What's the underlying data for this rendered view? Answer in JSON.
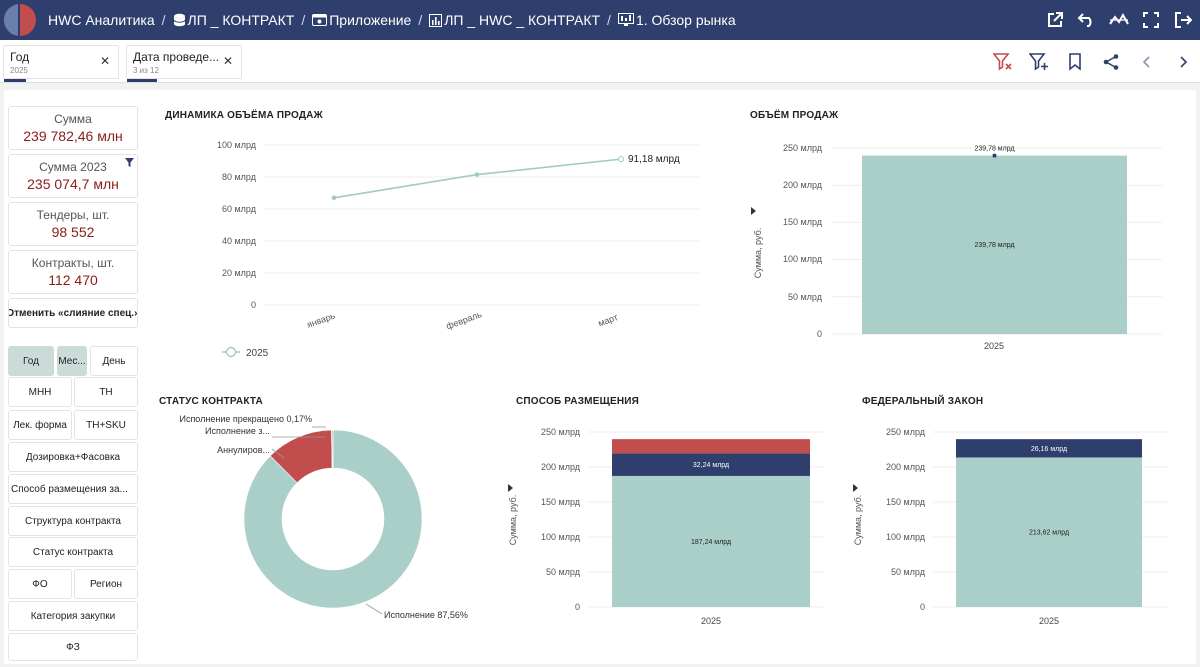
{
  "colors": {
    "topbar": "#2f3f6d",
    "teal": "#a9cfc8",
    "red": "#c14d4d",
    "navy": "#2f3f6d",
    "kpi": "#8a1c1c"
  },
  "breadcrumb": [
    {
      "label": "HWC Аналитика",
      "icon": ""
    },
    {
      "label": "ЛП _ КОНТРАКТ",
      "icon": "database-icon"
    },
    {
      "label": "Приложение",
      "icon": "app-icon"
    },
    {
      "label": "ЛП _ HWC _ КОНТРАКТ",
      "icon": "chart-icon"
    },
    {
      "label": "1. Обзор рынка",
      "icon": "monitor-icon"
    }
  ],
  "filters": [
    {
      "title": "Год",
      "sub": "2025"
    },
    {
      "title": "Дата проведе...",
      "sub": "3 из 12"
    }
  ],
  "kpis": [
    {
      "label": "Сумма",
      "value": "239 782,46 млн"
    },
    {
      "label": "Сумма 2023",
      "value": "235 074,7 млн"
    },
    {
      "label": "Тендеры, шт.",
      "value": "98 552"
    },
    {
      "label": "Контракты, шт.",
      "value": "112 470"
    }
  ],
  "sidebar_buttons": {
    "cancel_merge": "Отменить «слияние спец.»",
    "year": "Год",
    "month": "Мес...",
    "day": "День",
    "mnn": "МНН",
    "tn": "ТН",
    "lek_form": "Лек. форма",
    "tn_sku": "ТН+SKU",
    "dosage": "Дозировка+Фасовка",
    "placement": "Способ размещения за...",
    "structure": "Структура контракта",
    "status": "Статус контракта",
    "fo": "ФО",
    "region": "Регион",
    "category": "Категория закупки",
    "fz": "ФЗ"
  },
  "charts": {
    "dynamics": {
      "title": "ДИНАМИКА ОБЪЁМА ПРОДАЖ",
      "y_ticks": [
        "0",
        "20 млрд",
        "40 млрд",
        "60 млрд",
        "80 млрд",
        "100 млрд"
      ],
      "last_label": "91,18 млрд",
      "legend": "2025"
    },
    "volume": {
      "title": "ОБЪЁМ ПРОДАЖ",
      "y_ticks": [
        "0",
        "50 млрд",
        "100 млрд",
        "150 млрд",
        "200 млрд",
        "250 млрд"
      ],
      "ylabel": "Сумма, руб.",
      "top_label": "239,78 млрд",
      "mid_label": "239,78 млрд",
      "x_label": "2025"
    },
    "status": {
      "title": "СТАТУС КОНТРАКТА",
      "label_stopped": "Исполнение прекращено 0,17%",
      "label_exec_z": "Исполнение з...",
      "label_annul": "Аннулиров...",
      "label_exec": "Исполнение 87,56%"
    },
    "placement": {
      "title": "СПОСОБ РАЗМЕЩЕНИЯ",
      "y_ticks": [
        "0",
        "50 млрд",
        "100 млрд",
        "150 млрд",
        "200 млрд",
        "250 млрд"
      ],
      "ylabel": "Сумма, руб.",
      "label_navy": "32,24 млрд",
      "label_teal": "187,24 млрд",
      "x_label": "2025"
    },
    "federal": {
      "title": "ФЕДЕРАЛЬНЫЙ ЗАКОН",
      "y_ticks": [
        "0",
        "50 млрд",
        "100 млрд",
        "150 млрд",
        "200 млрд",
        "250 млрд"
      ],
      "ylabel": "Сумма, руб.",
      "label_navy": "26,16 млрд",
      "label_teal": "213,62 млрд",
      "x_label": "2025"
    }
  },
  "chart_data": [
    {
      "type": "line",
      "title": "ДИНАМИКА ОБЪЁМА ПРОДАЖ",
      "categories": [
        "январь",
        "февраль",
        "март"
      ],
      "series": [
        {
          "name": "2025",
          "values": [
            67,
            81.5,
            91.18
          ]
        }
      ],
      "ylim": [
        0,
        100
      ],
      "unit": "млрд"
    },
    {
      "type": "bar",
      "title": "ОБЪЁМ ПРОДАЖ",
      "categories": [
        "2025"
      ],
      "values": [
        239.78
      ],
      "ylabel": "Сумма, руб.",
      "ylim": [
        0,
        250
      ]
    },
    {
      "type": "pie",
      "title": "СТАТУС КОНТРАКТА",
      "labels": [
        "Исполнение",
        "Аннулировано",
        "Исполнение завершено",
        "Исполнение прекращено"
      ],
      "values": [
        87.56,
        12.17,
        0.1,
        0.17
      ],
      "unit": "%"
    },
    {
      "type": "bar",
      "stacked": true,
      "title": "СПОСОБ РАЗМЕЩЕНИЯ",
      "categories": [
        "2025"
      ],
      "series": [
        {
          "name": "teal",
          "values": [
            187.24
          ]
        },
        {
          "name": "navy",
          "values": [
            32.24
          ]
        },
        {
          "name": "red",
          "values": [
            20.3
          ]
        }
      ],
      "ylabel": "Сумма, руб.",
      "ylim": [
        0,
        250
      ]
    },
    {
      "type": "bar",
      "stacked": true,
      "title": "ФЕДЕРАЛЬНЫЙ ЗАКОН",
      "categories": [
        "2025"
      ],
      "series": [
        {
          "name": "teal",
          "values": [
            213.62
          ]
        },
        {
          "name": "navy",
          "values": [
            26.16
          ]
        }
      ],
      "ylabel": "Сумма, руб.",
      "ylim": [
        0,
        250
      ]
    }
  ]
}
